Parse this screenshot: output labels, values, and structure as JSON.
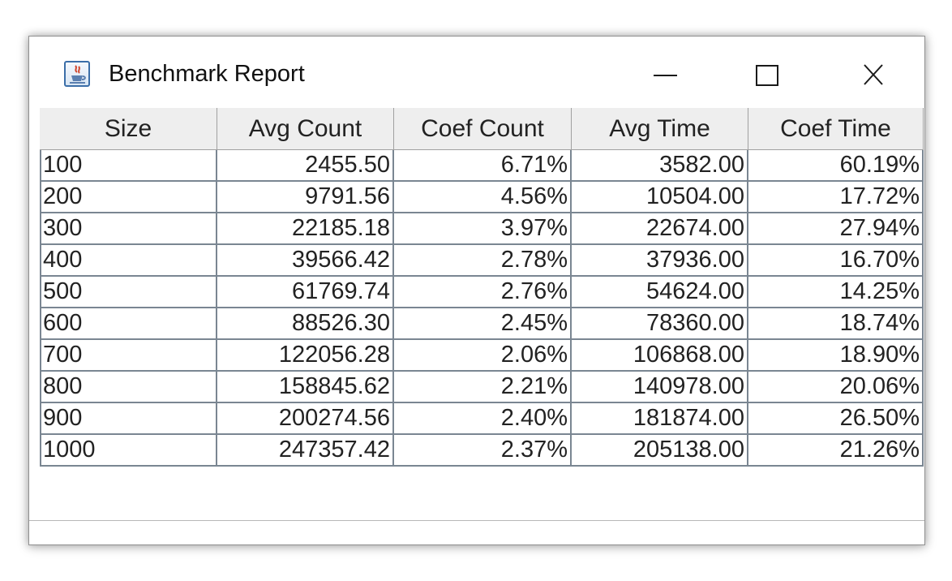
{
  "window": {
    "title": "Benchmark Report",
    "icon": "java-cup-icon",
    "controls": {
      "minimize_icon": "minimize-icon",
      "maximize_icon": "maximize-icon",
      "close_icon": "close-icon"
    }
  },
  "table": {
    "columns": [
      "Size",
      "Avg Count",
      "Coef Count",
      "Avg Time",
      "Coef Time"
    ],
    "rows": [
      [
        "100",
        "2455.50",
        "6.71%",
        "3582.00",
        "60.19%"
      ],
      [
        "200",
        "9791.56",
        "4.56%",
        "10504.00",
        "17.72%"
      ],
      [
        "300",
        "22185.18",
        "3.97%",
        "22674.00",
        "27.94%"
      ],
      [
        "400",
        "39566.42",
        "2.78%",
        "37936.00",
        "16.70%"
      ],
      [
        "500",
        "61769.74",
        "2.76%",
        "54624.00",
        "14.25%"
      ],
      [
        "600",
        "88526.30",
        "2.45%",
        "78360.00",
        "18.74%"
      ],
      [
        "700",
        "122056.28",
        "2.06%",
        "106868.00",
        "18.90%"
      ],
      [
        "800",
        "158845.62",
        "2.21%",
        "140978.00",
        "20.06%"
      ],
      [
        "900",
        "200274.56",
        "2.40%",
        "181874.00",
        "26.50%"
      ],
      [
        "1000",
        "247357.42",
        "2.37%",
        "205138.00",
        "21.26%"
      ]
    ]
  },
  "colors": {
    "header_bg": "#eeeeee",
    "grid_line": "#7a8692",
    "text": "#222222"
  }
}
